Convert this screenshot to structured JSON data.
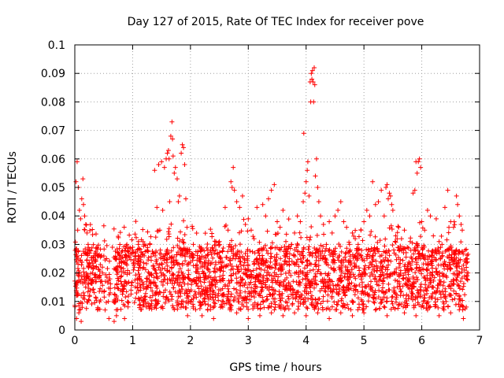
{
  "chart_data": {
    "type": "scatter",
    "title": "Day 127 of 2015, Rate Of TEC Index for receiver pove",
    "xlabel": "GPS time / hours",
    "ylabel": "ROTI / TECUs",
    "xlim": [
      0,
      7
    ],
    "ylim": [
      0,
      0.1
    ],
    "xticks": [
      0,
      1,
      2,
      3,
      4,
      5,
      6,
      7
    ],
    "xtick_labels": [
      "0",
      "1",
      "2",
      "3",
      "4",
      "5",
      "6",
      "7"
    ],
    "yticks": [
      0,
      0.01,
      0.02,
      0.03,
      0.04,
      0.05,
      0.06,
      0.07,
      0.08,
      0.09,
      0.1
    ],
    "ytick_labels": [
      "0",
      "0.01",
      "0.02",
      "0.03",
      "0.04",
      "0.05",
      "0.06",
      "0.07",
      "0.08",
      "0.09",
      "0.1"
    ],
    "grid": true,
    "marker": "+",
    "color": "#ff0000",
    "series": [
      {
        "name": "ROTI",
        "points": [
          [
            0.02,
            0.052
          ],
          [
            0.04,
            0.059
          ],
          [
            0.05,
            0.035
          ],
          [
            0.06,
            0.05
          ],
          [
            0.08,
            0.042
          ],
          [
            0.1,
            0.039
          ],
          [
            0.12,
            0.046
          ],
          [
            0.14,
            0.053
          ],
          [
            0.15,
            0.044
          ],
          [
            0.17,
            0.04
          ],
          [
            0.19,
            0.037
          ],
          [
            0.21,
            0.034
          ],
          [
            0.03,
            0.004
          ],
          [
            0.07,
            0.006
          ],
          [
            0.11,
            0.003
          ],
          [
            0.23,
            0.03
          ],
          [
            0.35,
            0.027
          ],
          [
            0.45,
            0.026
          ],
          [
            0.55,
            0.025
          ],
          [
            0.59,
            0.004
          ],
          [
            0.65,
            0.029
          ],
          [
            0.68,
            0.003
          ],
          [
            0.72,
            0.005
          ],
          [
            0.86,
            0.004
          ],
          [
            0.9,
            0.03
          ],
          [
            1.0,
            0.029
          ],
          [
            1.05,
            0.027
          ],
          [
            1.1,
            0.031
          ],
          [
            1.12,
            0.018
          ],
          [
            1.2,
            0.026
          ],
          [
            1.3,
            0.03
          ],
          [
            1.38,
            0.056
          ],
          [
            1.42,
            0.043
          ],
          [
            1.45,
            0.058
          ],
          [
            1.47,
            0.035
          ],
          [
            1.5,
            0.059
          ],
          [
            1.52,
            0.042
          ],
          [
            1.55,
            0.057
          ],
          [
            1.58,
            0.06
          ],
          [
            1.6,
            0.062
          ],
          [
            1.62,
            0.063
          ],
          [
            1.63,
            0.06
          ],
          [
            1.64,
            0.045
          ],
          [
            1.66,
            0.068
          ],
          [
            1.68,
            0.073
          ],
          [
            1.69,
            0.067
          ],
          [
            1.7,
            0.061
          ],
          [
            1.72,
            0.055
          ],
          [
            1.74,
            0.057
          ],
          [
            1.77,
            0.053
          ],
          [
            1.79,
            0.045
          ],
          [
            1.81,
            0.047
          ],
          [
            1.84,
            0.062
          ],
          [
            1.86,
            0.065
          ],
          [
            1.88,
            0.064
          ],
          [
            1.9,
            0.058
          ],
          [
            1.92,
            0.046
          ],
          [
            1.94,
            0.036
          ],
          [
            1.85,
            0.028
          ],
          [
            1.95,
            0.005
          ],
          [
            2.05,
            0.03
          ],
          [
            2.15,
            0.025
          ],
          [
            2.2,
            0.005
          ],
          [
            2.3,
            0.028
          ],
          [
            2.4,
            0.004
          ],
          [
            2.5,
            0.031
          ],
          [
            2.6,
            0.043
          ],
          [
            2.65,
            0.035
          ],
          [
            2.68,
            0.03
          ],
          [
            2.7,
            0.052
          ],
          [
            2.72,
            0.05
          ],
          [
            2.74,
            0.057
          ],
          [
            2.76,
            0.049
          ],
          [
            2.8,
            0.045
          ],
          [
            2.85,
            0.043
          ],
          [
            2.9,
            0.047
          ],
          [
            2.95,
            0.037
          ],
          [
            3.0,
            0.039
          ],
          [
            3.05,
            0.035
          ],
          [
            3.1,
            0.032
          ],
          [
            3.15,
            0.043
          ],
          [
            3.25,
            0.044
          ],
          [
            3.3,
            0.04
          ],
          [
            3.35,
            0.046
          ],
          [
            3.4,
            0.049
          ],
          [
            3.45,
            0.051
          ],
          [
            3.5,
            0.038
          ],
          [
            3.55,
            0.036
          ],
          [
            3.6,
            0.042
          ],
          [
            3.65,
            0.031
          ],
          [
            3.7,
            0.029
          ],
          [
            3.75,
            0.03
          ],
          [
            3.8,
            0.034
          ],
          [
            3.85,
            0.04
          ],
          [
            3.9,
            0.038
          ],
          [
            3.95,
            0.045
          ],
          [
            3.96,
            0.069
          ],
          [
            3.98,
            0.048
          ],
          [
            4.0,
            0.052
          ],
          [
            4.02,
            0.056
          ],
          [
            4.03,
            0.059
          ],
          [
            4.05,
            0.047
          ],
          [
            4.07,
            0.087
          ],
          [
            4.08,
            0.08
          ],
          [
            4.09,
            0.09
          ],
          [
            4.1,
            0.088
          ],
          [
            4.11,
            0.091
          ],
          [
            4.12,
            0.087
          ],
          [
            4.13,
            0.08
          ],
          [
            4.14,
            0.092
          ],
          [
            4.15,
            0.086
          ],
          [
            4.16,
            0.054
          ],
          [
            4.18,
            0.06
          ],
          [
            4.2,
            0.05
          ],
          [
            4.22,
            0.045
          ],
          [
            4.25,
            0.04
          ],
          [
            4.3,
            0.037
          ],
          [
            4.35,
            0.03
          ],
          [
            4.4,
            0.038
          ],
          [
            4.45,
            0.034
          ],
          [
            4.5,
            0.04
          ],
          [
            4.55,
            0.042
          ],
          [
            4.6,
            0.045
          ],
          [
            4.65,
            0.038
          ],
          [
            4.7,
            0.036
          ],
          [
            4.75,
            0.03
          ],
          [
            4.8,
            0.034
          ],
          [
            4.85,
            0.032
          ],
          [
            4.9,
            0.03
          ],
          [
            4.95,
            0.035
          ],
          [
            5.0,
            0.038
          ],
          [
            5.05,
            0.042
          ],
          [
            5.1,
            0.04
          ],
          [
            5.15,
            0.052
          ],
          [
            5.2,
            0.044
          ],
          [
            5.25,
            0.045
          ],
          [
            5.3,
            0.049
          ],
          [
            5.35,
            0.04
          ],
          [
            5.38,
            0.05
          ],
          [
            5.4,
            0.051
          ],
          [
            5.42,
            0.046
          ],
          [
            5.44,
            0.048
          ],
          [
            5.46,
            0.047
          ],
          [
            5.48,
            0.044
          ],
          [
            5.5,
            0.042
          ],
          [
            5.55,
            0.033
          ],
          [
            5.6,
            0.036
          ],
          [
            5.65,
            0.032
          ],
          [
            5.7,
            0.035
          ],
          [
            5.75,
            0.029
          ],
          [
            5.8,
            0.031
          ],
          [
            5.85,
            0.048
          ],
          [
            5.88,
            0.049
          ],
          [
            5.9,
            0.059
          ],
          [
            5.92,
            0.055
          ],
          [
            5.94,
            0.059
          ],
          [
            5.96,
            0.06
          ],
          [
            5.98,
            0.057
          ],
          [
            6.0,
            0.038
          ],
          [
            6.05,
            0.035
          ],
          [
            6.1,
            0.042
          ],
          [
            6.15,
            0.04
          ],
          [
            6.2,
            0.033
          ],
          [
            6.25,
            0.039
          ],
          [
            6.3,
            0.031
          ],
          [
            6.35,
            0.03
          ],
          [
            6.4,
            0.043
          ],
          [
            6.45,
            0.049
          ],
          [
            6.5,
            0.038
          ],
          [
            6.55,
            0.036
          ],
          [
            6.6,
            0.047
          ],
          [
            6.62,
            0.044
          ],
          [
            6.65,
            0.04
          ],
          [
            6.68,
            0.037
          ],
          [
            6.7,
            0.035
          ],
          [
            6.75,
            0.028
          ],
          [
            6.78,
            0.025
          ],
          [
            6.8,
            0.02
          ],
          [
            6.72,
            0.004
          ],
          [
            6.5,
            0.006
          ],
          [
            6.3,
            0.005
          ],
          [
            6.1,
            0.007
          ],
          [
            5.9,
            0.005
          ],
          [
            5.7,
            0.006
          ],
          [
            5.4,
            0.005
          ],
          [
            5.2,
            0.007
          ],
          [
            5.0,
            0.006
          ],
          [
            4.8,
            0.005
          ],
          [
            4.6,
            0.006
          ],
          [
            4.4,
            0.004
          ],
          [
            4.2,
            0.006
          ],
          [
            4.0,
            0.005
          ],
          [
            3.8,
            0.006
          ],
          [
            3.6,
            0.005
          ],
          [
            3.4,
            0.006
          ],
          [
            3.2,
            0.005
          ],
          [
            3.0,
            0.004
          ],
          [
            2.8,
            0.006
          ]
        ]
      }
    ]
  }
}
